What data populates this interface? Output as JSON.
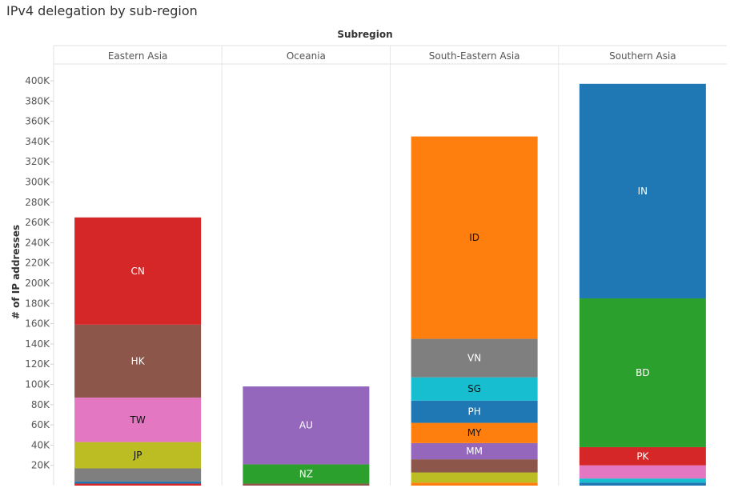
{
  "chart_data": {
    "type": "bar",
    "stacked": true,
    "title": "IPv4 delegation by sub-region",
    "column_header": "Subregion",
    "ylabel": "# of IP addresses",
    "ylim": [
      0,
      410000
    ],
    "yticks": [
      20000,
      40000,
      60000,
      80000,
      100000,
      120000,
      140000,
      160000,
      180000,
      200000,
      220000,
      240000,
      260000,
      280000,
      300000,
      320000,
      340000,
      360000,
      380000,
      400000
    ],
    "ytick_labels": [
      "20K",
      "40K",
      "60K",
      "80K",
      "100K",
      "120K",
      "140K",
      "160K",
      "180K",
      "200K",
      "220K",
      "240K",
      "260K",
      "280K",
      "300K",
      "320K",
      "340K",
      "360K",
      "380K",
      "400K"
    ],
    "grid": "vertical panel dividers only",
    "panels": [
      {
        "name": "Eastern Asia",
        "segments": [
          {
            "label": "",
            "value": 2000,
            "color": "#d62728"
          },
          {
            "label": "",
            "value": 2000,
            "color": "#1f77b4"
          },
          {
            "label": "",
            "value": 13000,
            "color": "#7f7f7f"
          },
          {
            "label": "JP",
            "value": 26000,
            "color": "#bcbd22"
          },
          {
            "label": "TW",
            "value": 44000,
            "color": "#e377c2"
          },
          {
            "label": "HK",
            "value": 72000,
            "color": "#8c564b"
          },
          {
            "label": "CN",
            "value": 106000,
            "color": "#d62728"
          }
        ]
      },
      {
        "name": "Oceania",
        "segments": [
          {
            "label": "",
            "value": 2000,
            "color": "#8c564b"
          },
          {
            "label": "NZ",
            "value": 19000,
            "color": "#2ca02c"
          },
          {
            "label": "AU",
            "value": 77000,
            "color": "#9467bd"
          }
        ]
      },
      {
        "name": "South-Eastern Asia",
        "segments": [
          {
            "label": "",
            "value": 3000,
            "color": "#ff7f0e"
          },
          {
            "label": "",
            "value": 10000,
            "color": "#bcbd22"
          },
          {
            "label": "",
            "value": 13000,
            "color": "#8c564b"
          },
          {
            "label": "MM",
            "value": 16000,
            "color": "#9467bd"
          },
          {
            "label": "MY",
            "value": 20000,
            "color": "#ff7f0e"
          },
          {
            "label": "PH",
            "value": 22000,
            "color": "#1f77b4"
          },
          {
            "label": "SG",
            "value": 23000,
            "color": "#17becf"
          },
          {
            "label": "VN",
            "value": 38000,
            "color": "#7f7f7f"
          },
          {
            "label": "ID",
            "value": 200000,
            "color": "#ff7f0e"
          }
        ]
      },
      {
        "name": "Southern Asia",
        "segments": [
          {
            "label": "",
            "value": 3000,
            "color": "#1f77b4"
          },
          {
            "label": "",
            "value": 4000,
            "color": "#17becf"
          },
          {
            "label": "",
            "value": 13000,
            "color": "#e377c2"
          },
          {
            "label": "PK",
            "value": 18000,
            "color": "#d62728"
          },
          {
            "label": "BD",
            "value": 147000,
            "color": "#2ca02c"
          },
          {
            "label": "IN",
            "value": 212000,
            "color": "#1f77b4"
          }
        ]
      }
    ]
  }
}
